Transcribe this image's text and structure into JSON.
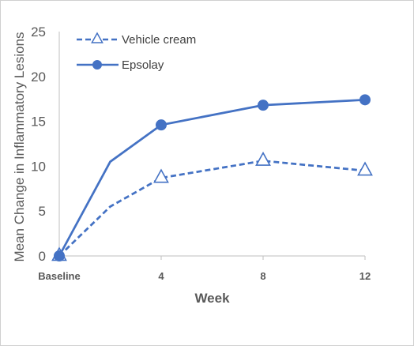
{
  "chart_data": {
    "type": "line",
    "title": "",
    "xlabel": "Week",
    "ylabel": "Mean Change in Inflammatory Lesions",
    "x": [
      0,
      2,
      4,
      8,
      12
    ],
    "x_tick_values": [
      0,
      4,
      8,
      12
    ],
    "x_tick_labels": [
      "Baseline",
      "4",
      "8",
      "12"
    ],
    "xlim": [
      0,
      12
    ],
    "ylim": [
      0,
      25
    ],
    "y_ticks": [
      0,
      5,
      10,
      15,
      20,
      25
    ],
    "grid": false,
    "legend_position": "top-left",
    "series": [
      {
        "name": "Vehicle cream",
        "values": [
          0,
          5.5,
          8.7,
          10.6,
          9.5
        ],
        "marker": "triangle-open",
        "marker_indices": [
          0,
          2,
          3,
          4
        ],
        "line_style": "dashed",
        "color": "#4472C4"
      },
      {
        "name": "Epsolay",
        "values": [
          0,
          10.5,
          14.6,
          16.8,
          17.4
        ],
        "marker": "circle-filled",
        "marker_indices": [
          0,
          2,
          3,
          4
        ],
        "line_style": "solid",
        "color": "#4472C4"
      }
    ]
  }
}
